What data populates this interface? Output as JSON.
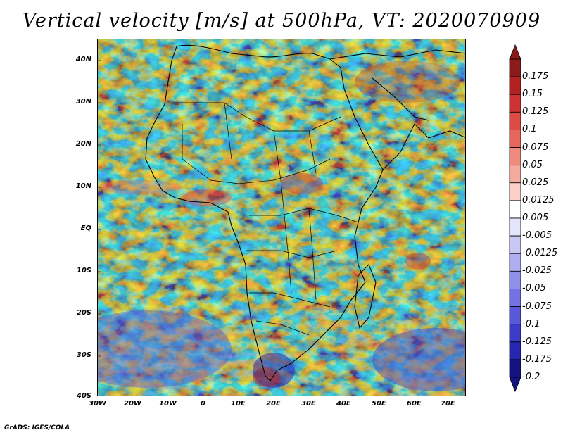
{
  "title": "Vertical velocity [m/s] at 500hPa, VT: 2020070909",
  "lat_ticks": [
    "40N",
    "30N",
    "20N",
    "10N",
    "EQ",
    "10S",
    "20S",
    "30S",
    "40S"
  ],
  "lon_ticks": [
    "30W",
    "20W",
    "10W",
    "0",
    "10E",
    "20E",
    "30E",
    "40E",
    "50E",
    "60E",
    "70E"
  ],
  "colorbar": {
    "labels": [
      "0.175",
      "0.15",
      "0.125",
      "0.1",
      "0.075",
      "0.05",
      "0.025",
      "0.0125",
      "0.005",
      "-0.005",
      "-0.0125",
      "-0.025",
      "-0.05",
      "-0.075",
      "-0.1",
      "-0.125",
      "-0.175",
      "-0.2"
    ],
    "colors": [
      "#8b1a1a",
      "#b22222",
      "#cd3333",
      "#de4a44",
      "#e8675c",
      "#ef8a7e",
      "#f5aaa0",
      "#fad0c9",
      "#ffffff",
      "#e4e4fa",
      "#c8c8f5",
      "#aeaef0",
      "#9090ea",
      "#7272e2",
      "#5858d8",
      "#3c3cc8",
      "#2626b0",
      "#141480"
    ]
  },
  "footer": "GrADS: IGES/COLA"
}
